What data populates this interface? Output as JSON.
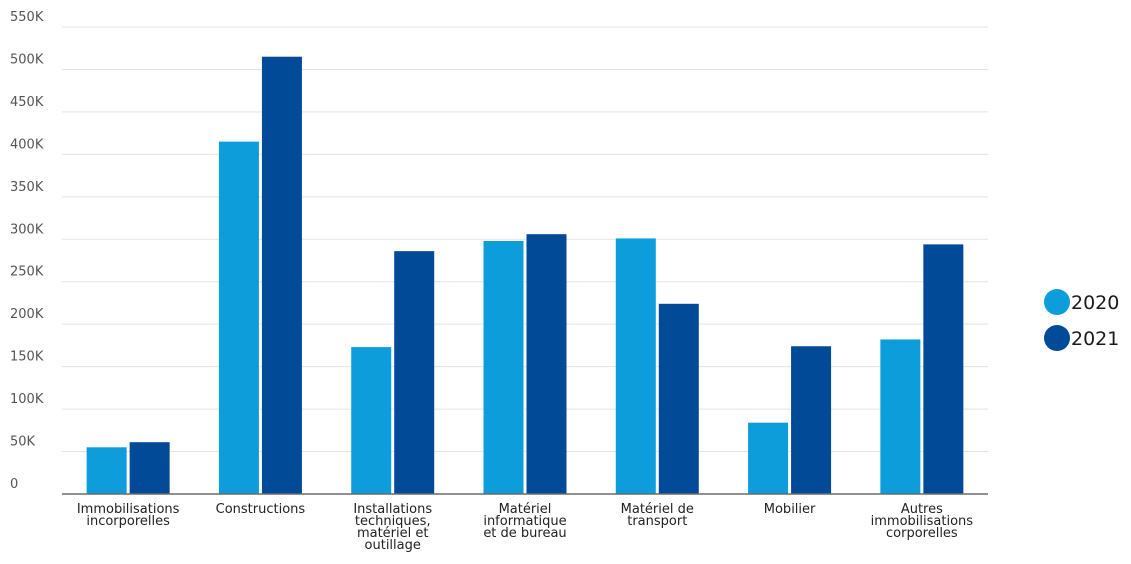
{
  "chart_data": {
    "type": "bar",
    "categories": [
      [
        "Immobilisations",
        "incorporelles"
      ],
      [
        "Constructions"
      ],
      [
        "Installations",
        "techniques,",
        "matériel et",
        "outillage"
      ],
      [
        "Matériel",
        "informatique",
        "et de bureau"
      ],
      [
        "Matériel de",
        "transport"
      ],
      [
        "Mobilier"
      ],
      [
        "Autres",
        "immobilisations",
        "corporelles"
      ]
    ],
    "series": [
      {
        "name": "2020",
        "color": "#0D9DDB",
        "values": [
          55000,
          415000,
          173000,
          298000,
          301000,
          84000,
          182000
        ]
      },
      {
        "name": "2021",
        "color": "#004A98",
        "values": [
          61000,
          515000,
          286000,
          306000,
          224000,
          174000,
          294000
        ]
      }
    ],
    "ylim": [
      0,
      550000
    ],
    "yticks": [
      {
        "value": 0,
        "label": "0"
      },
      {
        "value": 50000,
        "label": "50K"
      },
      {
        "value": 100000,
        "label": "100K"
      },
      {
        "value": 150000,
        "label": "150K"
      },
      {
        "value": 200000,
        "label": "200K"
      },
      {
        "value": 250000,
        "label": "250K"
      },
      {
        "value": 300000,
        "label": "300K"
      },
      {
        "value": 350000,
        "label": "350K"
      },
      {
        "value": 400000,
        "label": "400K"
      },
      {
        "value": 450000,
        "label": "450K"
      },
      {
        "value": 500000,
        "label": "500K"
      },
      {
        "value": 550000,
        "label": "550K"
      }
    ],
    "grid": true,
    "legend_position": "right",
    "title": "",
    "xlabel": "",
    "ylabel": ""
  }
}
